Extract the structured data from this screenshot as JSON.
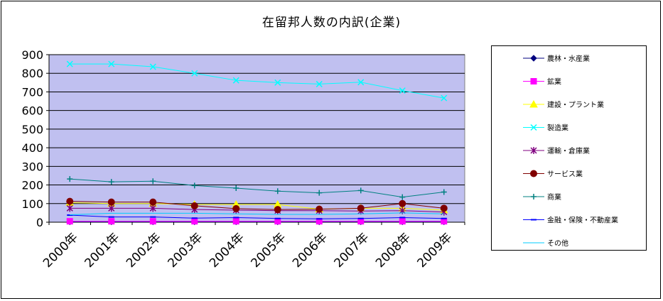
{
  "chart_data": {
    "type": "line",
    "title": "在留邦人数の内訳(企業)",
    "categories": [
      "2000年",
      "2001年",
      "2002年",
      "2003年",
      "2004年",
      "2005年",
      "2006年",
      "2007年",
      "2008年",
      "2009年"
    ],
    "ylim": [
      0,
      900
    ],
    "yticks": [
      0,
      100,
      200,
      300,
      400,
      500,
      600,
      700,
      800,
      900
    ],
    "grid": true,
    "legend_position": "right",
    "plot_background": "#c0c0f0",
    "series": [
      {
        "name": "農林・水産業",
        "color": "#00007f",
        "marker": "diamond",
        "values": [
          2,
          2,
          2,
          2,
          2,
          2,
          2,
          2,
          2,
          2
        ]
      },
      {
        "name": "鉱業",
        "color": "#ff00ff",
        "marker": "square",
        "values": [
          5,
          5,
          5,
          5,
          5,
          5,
          5,
          5,
          5,
          5
        ]
      },
      {
        "name": "建設・プラント業",
        "color": "#ffff00",
        "marker": "triangle",
        "values": [
          105,
          100,
          100,
          95,
          95,
          95,
          70,
          75,
          75,
          65
        ]
      },
      {
        "name": "製造業",
        "color": "#00ffff",
        "marker": "x",
        "values": [
          850,
          850,
          835,
          800,
          762,
          750,
          742,
          752,
          707,
          667
        ]
      },
      {
        "name": "運輸・倉庫業",
        "color": "#800080",
        "marker": "star",
        "values": [
          75,
          75,
          75,
          68,
          65,
          62,
          62,
          60,
          62,
          55
        ]
      },
      {
        "name": "サービス業",
        "color": "#800000",
        "marker": "circle",
        "values": [
          112,
          108,
          108,
          88,
          73,
          68,
          70,
          75,
          100,
          75
        ]
      },
      {
        "name": "商業",
        "color": "#008080",
        "marker": "plus",
        "values": [
          232,
          217,
          220,
          197,
          183,
          167,
          158,
          170,
          135,
          162
        ]
      },
      {
        "name": "金融・保険・不動産業",
        "color": "#0000ff",
        "marker": "dash",
        "values": [
          38,
          28,
          28,
          22,
          25,
          20,
          18,
          20,
          25,
          20
        ]
      },
      {
        "name": "その他",
        "color": "#00ccff",
        "marker": "line",
        "values": [
          40,
          48,
          48,
          48,
          45,
          42,
          42,
          45,
          50,
          45
        ]
      }
    ]
  }
}
